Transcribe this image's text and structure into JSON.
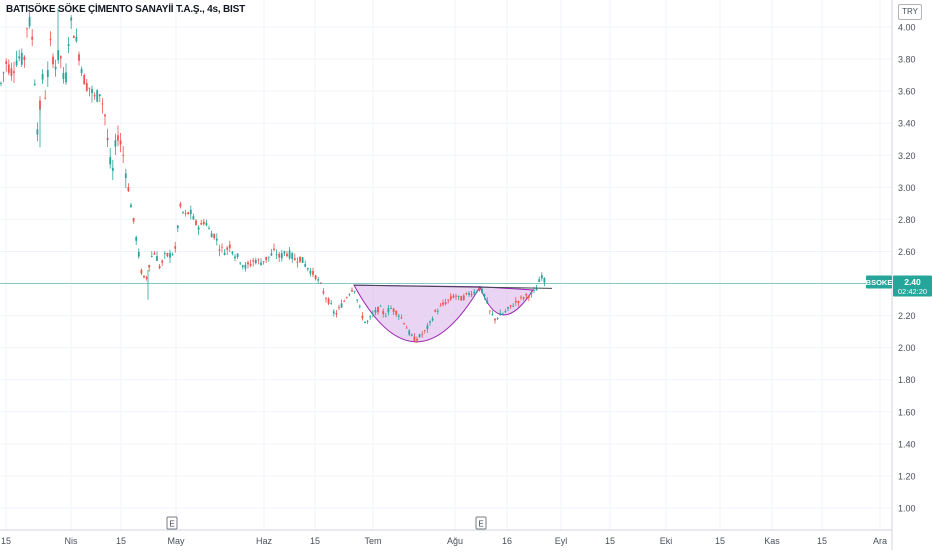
{
  "header": {
    "title": "BATISÖKE SÖKE ÇİMENTO SANAYİİ T.A.Ş., 4s, BIST",
    "currency": "TRY"
  },
  "price_label": {
    "symbol": "BSOKE",
    "price": "2.40",
    "countdown": "02:42:20"
  },
  "colors": {
    "up": "#26a69a",
    "down": "#ef5350",
    "pattern_fill": "#e1c5ef",
    "pattern_stroke": "#9c27b0",
    "last_price_line": "#26a69a",
    "grid": "#f0f3fa",
    "axis_text": "#4a4f5a"
  },
  "chart_data": {
    "type": "candlestick",
    "title": "BATISÖKE SÖKE ÇİMENTO SANAYİİ T.A.Ş., 4s, BIST",
    "ylim": [
      0.85,
      4.15
    ],
    "y_ticks": [
      "1.00",
      "1.20",
      "1.40",
      "1.60",
      "1.80",
      "2.00",
      "2.20",
      "2.40",
      "2.60",
      "2.80",
      "3.00",
      "3.20",
      "3.40",
      "3.60",
      "3.80",
      "4.00"
    ],
    "x_ticks": [
      "15",
      "Nis",
      "15",
      "May",
      "Haz",
      "15",
      "Tem",
      "Ağu",
      "16",
      "Eyl",
      "15",
      "Eki",
      "15",
      "Kas",
      "15",
      "Ara"
    ],
    "event_markers": [
      "E",
      "E"
    ],
    "last_price": 2.4,
    "price_path": [
      [
        0,
        3.62
      ],
      [
        6,
        3.78
      ],
      [
        12,
        3.72
      ],
      [
        18,
        3.82
      ],
      [
        24,
        3.78
      ],
      [
        28,
        4.08
      ],
      [
        32,
        3.95
      ],
      [
        35,
        3.65
      ],
      [
        38,
        3.3
      ],
      [
        42,
        3.7
      ],
      [
        46,
        3.55
      ],
      [
        50,
        3.9
      ],
      [
        55,
        3.75
      ],
      [
        60,
        3.85
      ],
      [
        65,
        3.6
      ],
      [
        70,
        4.05
      ],
      [
        75,
        3.95
      ],
      [
        80,
        3.8
      ],
      [
        85,
        3.65
      ],
      [
        90,
        3.62
      ],
      [
        95,
        3.55
      ],
      [
        100,
        3.6
      ],
      [
        105,
        3.45
      ],
      [
        110,
        3.15
      ],
      [
        113,
        3.1
      ],
      [
        117,
        3.35
      ],
      [
        122,
        3.25
      ],
      [
        127,
        3.05
      ],
      [
        132,
        2.85
      ],
      [
        137,
        2.65
      ],
      [
        142,
        2.45
      ],
      [
        146,
        2.42
      ],
      [
        150,
        2.55
      ],
      [
        155,
        2.6
      ],
      [
        160,
        2.5
      ],
      [
        165,
        2.57
      ],
      [
        170,
        2.58
      ],
      [
        175,
        2.6
      ],
      [
        180,
        2.88
      ],
      [
        185,
        2.82
      ],
      [
        190,
        2.85
      ],
      [
        195,
        2.78
      ],
      [
        200,
        2.75
      ],
      [
        205,
        2.8
      ],
      [
        210,
        2.72
      ],
      [
        215,
        2.7
      ],
      [
        220,
        2.62
      ],
      [
        225,
        2.6
      ],
      [
        230,
        2.64
      ],
      [
        235,
        2.58
      ],
      [
        240,
        2.55
      ],
      [
        245,
        2.5
      ],
      [
        250,
        2.52
      ],
      [
        255,
        2.55
      ],
      [
        260,
        2.53
      ],
      [
        265,
        2.55
      ],
      [
        270,
        2.57
      ],
      [
        275,
        2.6
      ],
      [
        280,
        2.56
      ],
      [
        285,
        2.6
      ],
      [
        290,
        2.58
      ],
      [
        295,
        2.55
      ],
      [
        300,
        2.56
      ],
      [
        305,
        2.52
      ],
      [
        310,
        2.48
      ],
      [
        315,
        2.45
      ],
      [
        320,
        2.4
      ],
      [
        325,
        2.32
      ],
      [
        330,
        2.28
      ],
      [
        335,
        2.2
      ],
      [
        340,
        2.25
      ],
      [
        345,
        2.3
      ],
      [
        350,
        2.35
      ],
      [
        354,
        2.38
      ],
      [
        358,
        2.28
      ],
      [
        362,
        2.2
      ],
      [
        366,
        2.15
      ],
      [
        370,
        2.18
      ],
      [
        375,
        2.22
      ],
      [
        380,
        2.25
      ],
      [
        385,
        2.2
      ],
      [
        390,
        2.25
      ],
      [
        395,
        2.23
      ],
      [
        400,
        2.2
      ],
      [
        405,
        2.15
      ],
      [
        410,
        2.08
      ],
      [
        415,
        2.05
      ],
      [
        420,
        2.07
      ],
      [
        425,
        2.1
      ],
      [
        430,
        2.15
      ],
      [
        435,
        2.22
      ],
      [
        440,
        2.25
      ],
      [
        445,
        2.28
      ],
      [
        450,
        2.3
      ],
      [
        455,
        2.33
      ],
      [
        460,
        2.3
      ],
      [
        465,
        2.32
      ],
      [
        470,
        2.34
      ],
      [
        475,
        2.35
      ],
      [
        480,
        2.37
      ],
      [
        485,
        2.32
      ],
      [
        490,
        2.22
      ],
      [
        495,
        2.18
      ],
      [
        500,
        2.2
      ],
      [
        505,
        2.22
      ],
      [
        510,
        2.25
      ],
      [
        515,
        2.28
      ],
      [
        520,
        2.3
      ],
      [
        525,
        2.32
      ],
      [
        530,
        2.33
      ],
      [
        535,
        2.35
      ],
      [
        538,
        2.38
      ],
      [
        541,
        2.46
      ],
      [
        544,
        2.42
      ],
      [
        547,
        2.4
      ]
    ],
    "spikes": [
      [
        148,
        2.3
      ],
      [
        40,
        3.25
      ],
      [
        58,
        4.12
      ]
    ],
    "cup_handle": {
      "rim_left": [
        354,
        2.39
      ],
      "rim_right": [
        480,
        2.38
      ],
      "cup_bottom": [
        415,
        2.03
      ],
      "handle_right": [
        533,
        2.36
      ],
      "handle_bottom": [
        500,
        2.16
      ],
      "resistance_line": [
        [
          354,
          2.39
        ],
        [
          552,
          2.37
        ]
      ]
    }
  }
}
